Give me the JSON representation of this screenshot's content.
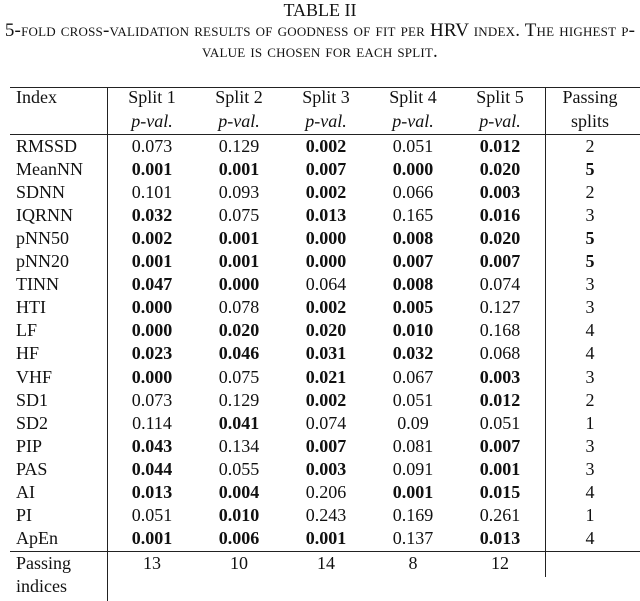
{
  "table": {
    "label": "TABLE II",
    "caption": "5-fold cross-validation results of goodness of fit per HRV index. The highest p-value is chosen for each split.",
    "columns": [
      {
        "label": "Index"
      },
      {
        "label": "Split 1",
        "sub": "p-val."
      },
      {
        "label": "Split 2",
        "sub": "p-val."
      },
      {
        "label": "Split 3",
        "sub": "p-val."
      },
      {
        "label": "Split 4",
        "sub": "p-val."
      },
      {
        "label": "Split 5",
        "sub": "p-val."
      },
      {
        "label": "Passing",
        "sub": "splits"
      }
    ],
    "rows": [
      {
        "cells": [
          "RMSSD",
          "0.073",
          "0.129",
          "0.002",
          "0.051",
          "0.012",
          "2"
        ],
        "bold": [
          false,
          false,
          false,
          true,
          false,
          true,
          false
        ]
      },
      {
        "cells": [
          "MeanNN",
          "0.001",
          "0.001",
          "0.007",
          "0.000",
          "0.020",
          "5"
        ],
        "bold": [
          false,
          true,
          true,
          true,
          true,
          true,
          true
        ]
      },
      {
        "cells": [
          "SDNN",
          "0.101",
          "0.093",
          "0.002",
          "0.066",
          "0.003",
          "2"
        ],
        "bold": [
          false,
          false,
          false,
          true,
          false,
          true,
          false
        ]
      },
      {
        "cells": [
          "IQRNN",
          "0.032",
          "0.075",
          "0.013",
          "0.165",
          "0.016",
          "3"
        ],
        "bold": [
          false,
          true,
          false,
          true,
          false,
          true,
          false
        ]
      },
      {
        "cells": [
          "pNN50",
          "0.002",
          "0.001",
          "0.000",
          "0.008",
          "0.020",
          "5"
        ],
        "bold": [
          false,
          true,
          true,
          true,
          true,
          true,
          true
        ]
      },
      {
        "cells": [
          "pNN20",
          "0.001",
          "0.001",
          "0.000",
          "0.007",
          "0.007",
          "5"
        ],
        "bold": [
          false,
          true,
          true,
          true,
          true,
          true,
          true
        ]
      },
      {
        "cells": [
          "TINN",
          "0.047",
          "0.000",
          "0.064",
          "0.008",
          "0.074",
          "3"
        ],
        "bold": [
          false,
          true,
          true,
          false,
          true,
          false,
          false
        ]
      },
      {
        "cells": [
          "HTI",
          "0.000",
          "0.078",
          "0.002",
          "0.005",
          "0.127",
          "3"
        ],
        "bold": [
          false,
          true,
          false,
          true,
          true,
          false,
          false
        ]
      },
      {
        "cells": [
          "LF",
          "0.000",
          "0.020",
          "0.020",
          "0.010",
          "0.168",
          "4"
        ],
        "bold": [
          false,
          true,
          true,
          true,
          true,
          false,
          false
        ]
      },
      {
        "cells": [
          "HF",
          "0.023",
          "0.046",
          "0.031",
          "0.032",
          "0.068",
          "4"
        ],
        "bold": [
          false,
          true,
          true,
          true,
          true,
          false,
          false
        ]
      },
      {
        "cells": [
          "VHF",
          "0.000",
          "0.075",
          "0.021",
          "0.067",
          "0.003",
          "3"
        ],
        "bold": [
          false,
          true,
          false,
          true,
          false,
          true,
          false
        ]
      },
      {
        "cells": [
          "SD1",
          "0.073",
          "0.129",
          "0.002",
          "0.051",
          "0.012",
          "2"
        ],
        "bold": [
          false,
          false,
          false,
          true,
          false,
          true,
          false
        ]
      },
      {
        "cells": [
          "SD2",
          "0.114",
          "0.041",
          "0.074",
          "0.09",
          "0.051",
          "1"
        ],
        "bold": [
          false,
          false,
          true,
          false,
          false,
          false,
          false
        ]
      },
      {
        "cells": [
          "PIP",
          "0.043",
          "0.134",
          "0.007",
          "0.081",
          "0.007",
          "3"
        ],
        "bold": [
          false,
          true,
          false,
          true,
          false,
          true,
          false
        ]
      },
      {
        "cells": [
          "PAS",
          "0.044",
          "0.055",
          "0.003",
          "0.091",
          "0.001",
          "3"
        ],
        "bold": [
          false,
          true,
          false,
          true,
          false,
          true,
          false
        ]
      },
      {
        "cells": [
          "AI",
          "0.013",
          "0.004",
          "0.206",
          "0.001",
          "0.015",
          "4"
        ],
        "bold": [
          false,
          true,
          true,
          false,
          true,
          true,
          false
        ]
      },
      {
        "cells": [
          "PI",
          "0.051",
          "0.010",
          "0.243",
          "0.169",
          "0.261",
          "1"
        ],
        "bold": [
          false,
          false,
          true,
          false,
          false,
          false,
          false
        ]
      },
      {
        "cells": [
          "ApEn",
          "0.001",
          "0.006",
          "0.001",
          "0.137",
          "0.013",
          "4"
        ],
        "bold": [
          false,
          true,
          true,
          true,
          false,
          true,
          false
        ]
      }
    ],
    "footer": {
      "label": [
        "Passing",
        "indices"
      ],
      "cells": [
        "13",
        "10",
        "14",
        "8",
        "12"
      ]
    }
  }
}
